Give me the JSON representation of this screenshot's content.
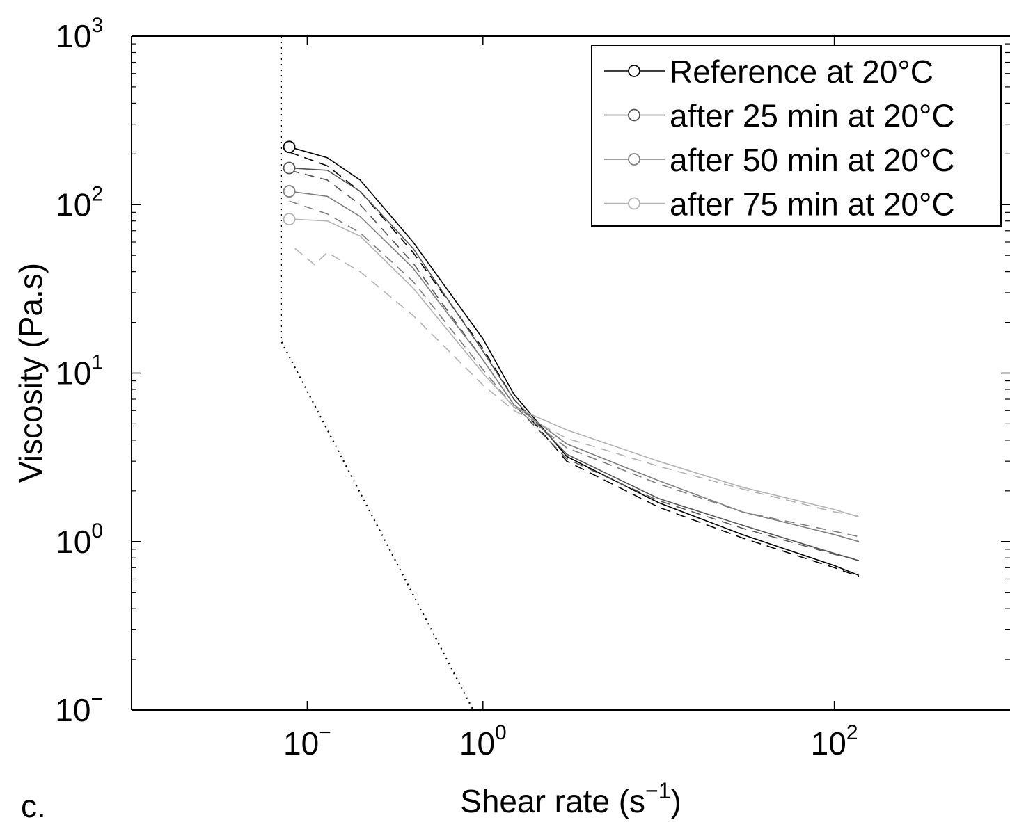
{
  "chart_data": {
    "type": "line",
    "panel_label": "c.",
    "xlabel": "Shear rate (s",
    "xlabel_sup": "−1",
    "xlabel_close": ")",
    "ylabel": "Viscosity (Pa.s)",
    "x_scale": "log",
    "y_scale": "log",
    "xlim": [
      0.01,
      1000
    ],
    "ylim": [
      0.1,
      1000
    ],
    "x_ticks": [
      {
        "base": "10",
        "exp": "−"
      },
      {
        "base": "10",
        "exp": "0"
      },
      {
        "base": "10",
        "exp": "2"
      }
    ],
    "y_ticks": [
      {
        "base": "10",
        "exp": "−"
      },
      {
        "base": "10",
        "exp": "0"
      },
      {
        "base": "10",
        "exp": "1"
      },
      {
        "base": "10",
        "exp": "2"
      },
      {
        "base": "10",
        "exp": "3"
      }
    ],
    "grid": false,
    "legend_position": "top-right",
    "series": [
      {
        "name": "Reference at 20°C",
        "color": "#000000",
        "marker": "circle",
        "points": [
          [
            0.079,
            220
          ],
          [
            0.13,
            190
          ],
          [
            0.2,
            140
          ],
          [
            0.4,
            60
          ],
          [
            1,
            16
          ],
          [
            1.5,
            7.5
          ],
          [
            3,
            3.2
          ],
          [
            10,
            1.7
          ],
          [
            30,
            1.1
          ],
          [
            100,
            0.72
          ],
          [
            138,
            0.63
          ]
        ],
        "fit": [
          [
            0.079,
            205
          ],
          [
            0.13,
            170
          ],
          [
            0.2,
            120
          ],
          [
            0.4,
            52
          ],
          [
            1,
            14
          ],
          [
            1.5,
            7
          ],
          [
            3,
            3
          ],
          [
            10,
            1.6
          ],
          [
            30,
            1.05
          ],
          [
            100,
            0.7
          ],
          [
            138,
            0.62
          ]
        ]
      },
      {
        "name": "after 25 min at 20°C",
        "color": "#555555",
        "marker": "circle",
        "points": [
          [
            0.079,
            165
          ],
          [
            0.13,
            160
          ],
          [
            0.2,
            120
          ],
          [
            0.4,
            55
          ],
          [
            1,
            13.5
          ],
          [
            1.5,
            7
          ],
          [
            3,
            3.3
          ],
          [
            10,
            1.8
          ],
          [
            30,
            1.25
          ],
          [
            100,
            0.85
          ],
          [
            138,
            0.77
          ]
        ],
        "fit": [
          [
            0.079,
            160
          ],
          [
            0.13,
            140
          ],
          [
            0.2,
            100
          ],
          [
            0.4,
            45
          ],
          [
            1,
            12
          ],
          [
            1.5,
            6.5
          ],
          [
            3,
            3.1
          ],
          [
            10,
            1.75
          ],
          [
            30,
            1.2
          ],
          [
            100,
            0.84
          ],
          [
            138,
            0.78
          ]
        ]
      },
      {
        "name": "after 50 min at 20°C",
        "color": "#7f7f7f",
        "marker": "circle",
        "points": [
          [
            0.079,
            120
          ],
          [
            0.13,
            112
          ],
          [
            0.2,
            85
          ],
          [
            0.4,
            42
          ],
          [
            1,
            12
          ],
          [
            1.5,
            6.5
          ],
          [
            3,
            3.8
          ],
          [
            10,
            2.3
          ],
          [
            30,
            1.5
          ],
          [
            100,
            1.1
          ],
          [
            138,
            1.0
          ]
        ],
        "fit": [
          [
            0.079,
            105
          ],
          [
            0.13,
            88
          ],
          [
            0.2,
            68
          ],
          [
            0.4,
            35
          ],
          [
            1,
            10.5
          ],
          [
            1.5,
            6.3
          ],
          [
            3,
            3.6
          ],
          [
            10,
            2.2
          ],
          [
            30,
            1.5
          ],
          [
            100,
            1.15
          ],
          [
            138,
            1.07
          ]
        ]
      },
      {
        "name": "after 75 min at 20°C",
        "color": "#b3b3b3",
        "marker": "circle",
        "points": [
          [
            0.079,
            82
          ],
          [
            0.13,
            80
          ],
          [
            0.2,
            65
          ],
          [
            0.4,
            32
          ],
          [
            1,
            10
          ],
          [
            1.5,
            6.3
          ],
          [
            3,
            4.6
          ],
          [
            10,
            3
          ],
          [
            30,
            2.1
          ],
          [
            100,
            1.55
          ],
          [
            138,
            1.4
          ]
        ],
        "fit": [
          [
            0.085,
            55
          ],
          [
            0.11,
            44
          ],
          [
            0.13,
            52
          ],
          [
            0.2,
            40
          ],
          [
            0.4,
            22
          ],
          [
            1,
            8.5
          ],
          [
            1.5,
            6
          ],
          [
            3,
            4.1
          ],
          [
            10,
            2.8
          ],
          [
            30,
            2.05
          ],
          [
            100,
            1.5
          ],
          [
            138,
            1.42
          ]
        ]
      }
    ],
    "reference_line": {
      "style": "dotted",
      "color": "#000000",
      "points": [
        [
          0.071,
          1000
        ],
        [
          0.071,
          15.5
        ],
        [
          0.88,
          0.1
        ]
      ]
    }
  }
}
